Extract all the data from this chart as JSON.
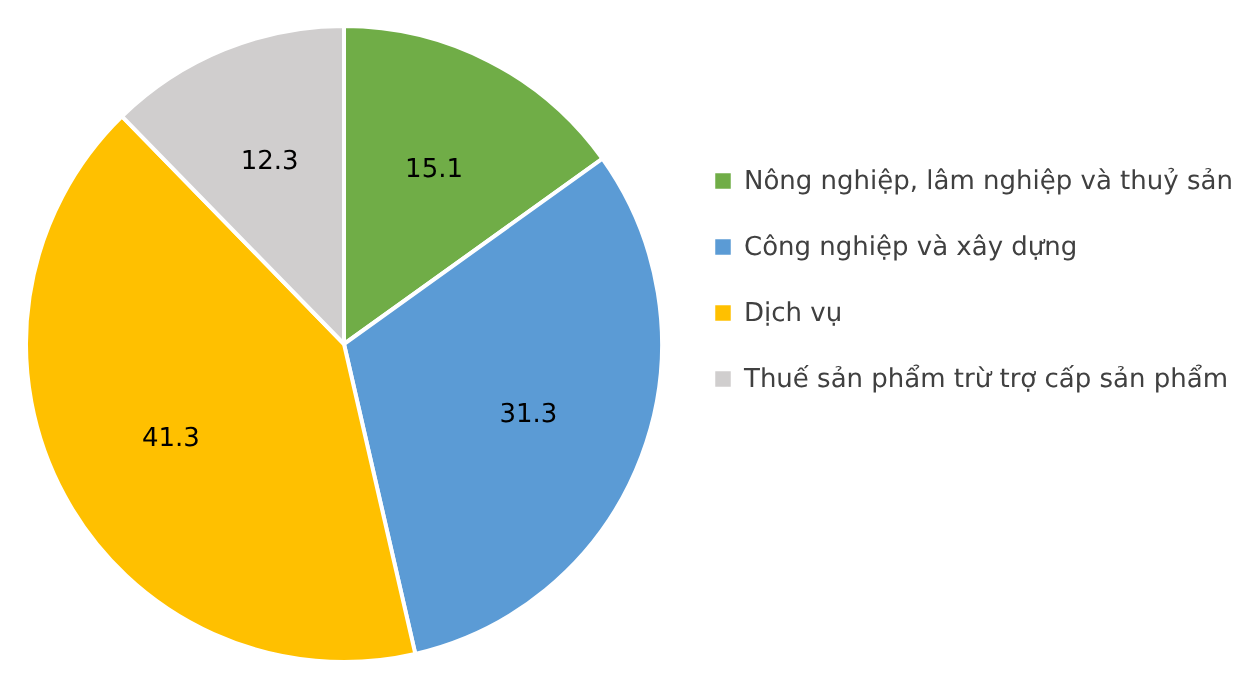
{
  "chart_data": {
    "type": "pie",
    "categories": [
      "Nông nghiệp, lâm nghiệp và thuỷ sản",
      "Công nghiệp và xây dựng",
      "Dịch vụ",
      "Thuế sản phẩm trừ trợ cấp sản phẩm"
    ],
    "values": [
      15.1,
      31.3,
      41.3,
      12.3
    ],
    "colors": [
      "#70ad47",
      "#5b9bd5",
      "#ffc000",
      "#d0cece"
    ],
    "data_labels": true,
    "legend": "right"
  }
}
